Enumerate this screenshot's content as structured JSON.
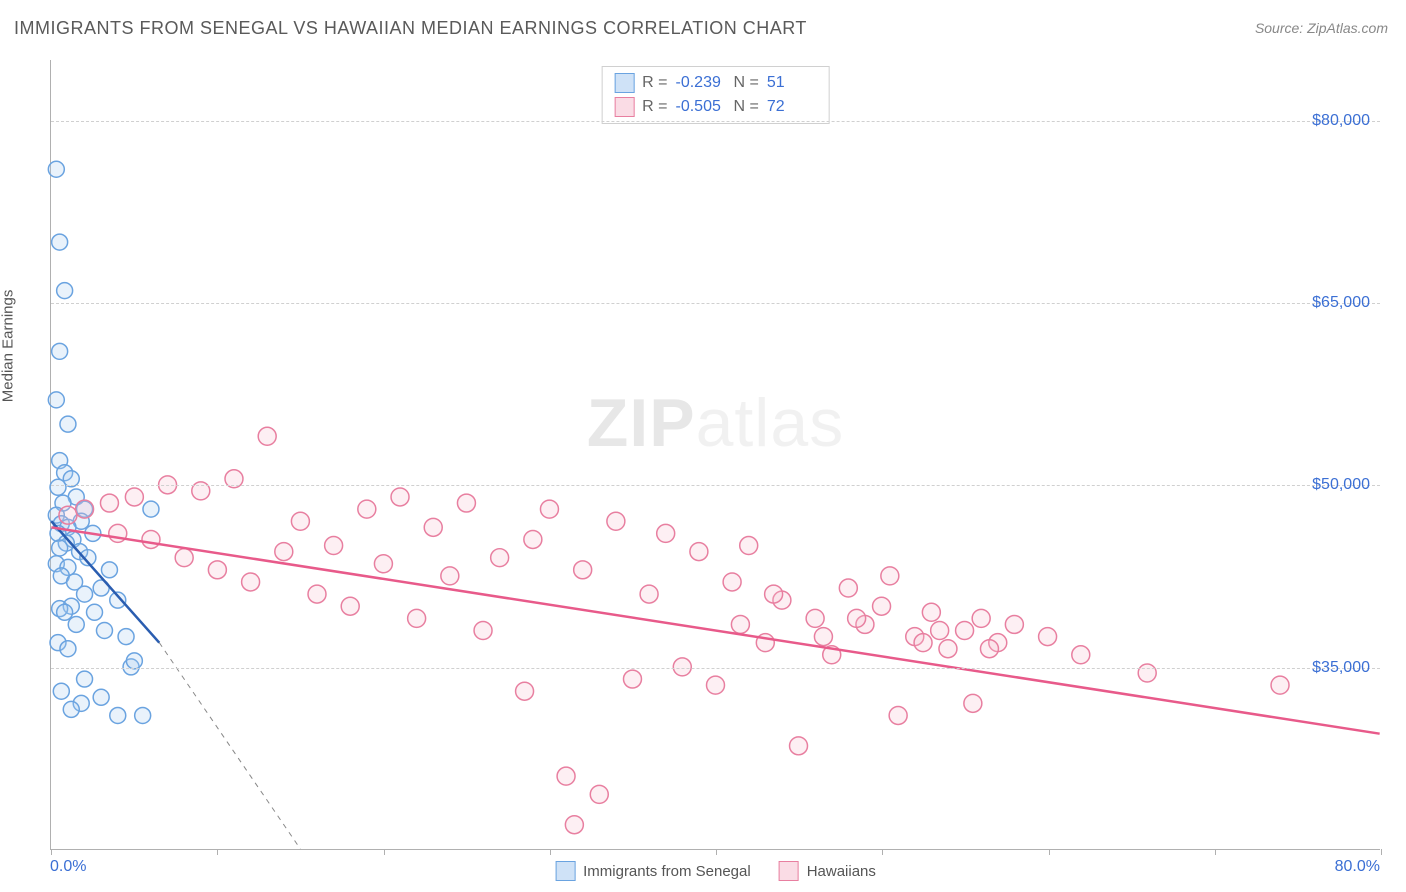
{
  "title": "IMMIGRANTS FROM SENEGAL VS HAWAIIAN MEDIAN EARNINGS CORRELATION CHART",
  "source": "Source: ZipAtlas.com",
  "watermark_bold": "ZIP",
  "watermark_light": "atlas",
  "yaxis_title": "Median Earnings",
  "xaxis": {
    "min": 0.0,
    "max": 80.0,
    "label_min": "0.0%",
    "label_max": "80.0%",
    "tick_positions_pct": [
      0,
      12.5,
      25,
      37.5,
      50,
      62.5,
      75,
      87.5,
      100
    ]
  },
  "yaxis": {
    "min": 20000,
    "max": 85000,
    "gridlines": [
      {
        "value": 35000,
        "label": "$35,000"
      },
      {
        "value": 50000,
        "label": "$50,000"
      },
      {
        "value": 65000,
        "label": "$65,000"
      },
      {
        "value": 80000,
        "label": "$80,000"
      }
    ]
  },
  "series": [
    {
      "id": "senegal",
      "label": "Immigrants from Senegal",
      "color_stroke": "#6aa3e0",
      "color_fill": "#a8cbef",
      "swatch_fill": "#cfe2f7",
      "swatch_border": "#6aa3e0",
      "regression_color": "#2a5db0",
      "marker_radius": 8,
      "stats": {
        "R_label": "R =",
        "R": "-0.239",
        "N_label": "N =",
        "N": "51"
      },
      "regression": {
        "x1": 0.0,
        "y1": 47000,
        "x2": 6.5,
        "y2": 37000,
        "dash_to_x": 15.0,
        "dash_to_y": 20000
      },
      "points": [
        [
          0.3,
          76000
        ],
        [
          0.5,
          70000
        ],
        [
          0.8,
          66000
        ],
        [
          0.5,
          61000
        ],
        [
          0.3,
          57000
        ],
        [
          1.0,
          55000
        ],
        [
          0.5,
          52000
        ],
        [
          0.8,
          51000
        ],
        [
          1.2,
          50500
        ],
        [
          0.4,
          49800
        ],
        [
          1.5,
          49000
        ],
        [
          0.7,
          48500
        ],
        [
          2.0,
          48000
        ],
        [
          0.3,
          47500
        ],
        [
          1.8,
          47000
        ],
        [
          0.6,
          46800
        ],
        [
          1.0,
          46500
        ],
        [
          2.5,
          46000
        ],
        [
          0.4,
          46000
        ],
        [
          1.3,
          45500
        ],
        [
          0.9,
          45200
        ],
        [
          6.0,
          48000
        ],
        [
          0.5,
          44800
        ],
        [
          1.7,
          44500
        ],
        [
          2.2,
          44000
        ],
        [
          0.3,
          43500
        ],
        [
          1.0,
          43200
        ],
        [
          3.5,
          43000
        ],
        [
          0.6,
          42500
        ],
        [
          1.4,
          42000
        ],
        [
          3.0,
          41500
        ],
        [
          2.0,
          41000
        ],
        [
          4.0,
          40500
        ],
        [
          1.2,
          40000
        ],
        [
          0.5,
          39800
        ],
        [
          0.8,
          39500
        ],
        [
          2.6,
          39500
        ],
        [
          1.5,
          38500
        ],
        [
          3.2,
          38000
        ],
        [
          4.5,
          37500
        ],
        [
          0.4,
          37000
        ],
        [
          1.0,
          36500
        ],
        [
          2.0,
          34000
        ],
        [
          4.8,
          35000
        ],
        [
          0.6,
          33000
        ],
        [
          5.0,
          35500
        ],
        [
          1.8,
          32000
        ],
        [
          4.0,
          31000
        ],
        [
          3.0,
          32500
        ],
        [
          1.2,
          31500
        ],
        [
          5.5,
          31000
        ]
      ]
    },
    {
      "id": "hawaiians",
      "label": "Hawaiians",
      "color_stroke": "#e87fa0",
      "color_fill": "#f7c0d0",
      "swatch_fill": "#fadce5",
      "swatch_border": "#e87fa0",
      "regression_color": "#e85a8a",
      "marker_radius": 9,
      "stats": {
        "R_label": "R =",
        "R": "-0.505",
        "N_label": "N =",
        "N": "72"
      },
      "regression": {
        "x1": 0.0,
        "y1": 46500,
        "x2": 80.0,
        "y2": 29500
      },
      "points": [
        [
          1.0,
          47500
        ],
        [
          2.0,
          48000
        ],
        [
          3.5,
          48500
        ],
        [
          4.0,
          46000
        ],
        [
          5.0,
          49000
        ],
        [
          6.0,
          45500
        ],
        [
          7.0,
          50000
        ],
        [
          8.0,
          44000
        ],
        [
          9.0,
          49500
        ],
        [
          10.0,
          43000
        ],
        [
          11.0,
          50500
        ],
        [
          12.0,
          42000
        ],
        [
          13.0,
          54000
        ],
        [
          14.0,
          44500
        ],
        [
          15.0,
          47000
        ],
        [
          16.0,
          41000
        ],
        [
          17.0,
          45000
        ],
        [
          18.0,
          40000
        ],
        [
          19.0,
          48000
        ],
        [
          20.0,
          43500
        ],
        [
          21.0,
          49000
        ],
        [
          22.0,
          39000
        ],
        [
          23.0,
          46500
        ],
        [
          24.0,
          42500
        ],
        [
          25.0,
          48500
        ],
        [
          26.0,
          38000
        ],
        [
          27.0,
          44000
        ],
        [
          28.5,
          33000
        ],
        [
          29.0,
          45500
        ],
        [
          30.0,
          48000
        ],
        [
          31.0,
          26000
        ],
        [
          32.0,
          43000
        ],
        [
          33.0,
          24500
        ],
        [
          34.0,
          47000
        ],
        [
          31.5,
          22000
        ],
        [
          35.0,
          34000
        ],
        [
          36.0,
          41000
        ],
        [
          37.0,
          46000
        ],
        [
          38.0,
          35000
        ],
        [
          39.0,
          44500
        ],
        [
          40.0,
          33500
        ],
        [
          41.0,
          42000
        ],
        [
          42.0,
          45000
        ],
        [
          43.0,
          37000
        ],
        [
          44.0,
          40500
        ],
        [
          45.0,
          28500
        ],
        [
          46.0,
          39000
        ],
        [
          47.0,
          36000
        ],
        [
          48.0,
          41500
        ],
        [
          49.0,
          38500
        ],
        [
          50.0,
          40000
        ],
        [
          51.0,
          31000
        ],
        [
          52.0,
          37500
        ],
        [
          53.0,
          39500
        ],
        [
          54.0,
          36500
        ],
        [
          55.0,
          38000
        ],
        [
          56.0,
          39000
        ],
        [
          57.0,
          37000
        ],
        [
          58.0,
          38500
        ],
        [
          50.5,
          42500
        ],
        [
          52.5,
          37000
        ],
        [
          55.5,
          32000
        ],
        [
          60.0,
          37500
        ],
        [
          62.0,
          36000
        ],
        [
          66.0,
          34500
        ],
        [
          41.5,
          38500
        ],
        [
          43.5,
          41000
        ],
        [
          46.5,
          37500
        ],
        [
          48.5,
          39000
        ],
        [
          74.0,
          33500
        ],
        [
          53.5,
          38000
        ],
        [
          56.5,
          36500
        ]
      ]
    }
  ],
  "colors": {
    "title": "#5a5a5a",
    "source": "#888888",
    "axis": "#b0b0b0",
    "grid": "#d0d0d0",
    "tick_label": "#3b6fd4",
    "text": "#555555"
  }
}
